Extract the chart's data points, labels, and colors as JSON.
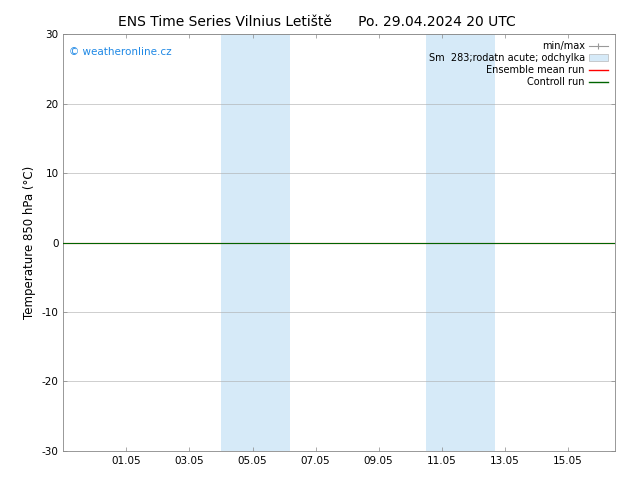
{
  "title_left": "ENS Time Series Vilnius Letiště",
  "title_right": "Po. 29.04.2024 20 UTC",
  "ylabel": "Temperature 850 hPa (°C)",
  "ylim": [
    -30,
    30
  ],
  "yticks": [
    -30,
    -20,
    -10,
    0,
    10,
    20,
    30
  ],
  "xtick_labels": [
    "01.05",
    "03.05",
    "05.05",
    "07.05",
    "09.05",
    "11.05",
    "13.05",
    "15.05"
  ],
  "xtick_positions": [
    2,
    4,
    6,
    8,
    10,
    12,
    14,
    16
  ],
  "x_min": 0,
  "x_max": 17.5,
  "shaded_bands": [
    {
      "x_start": 5.0,
      "x_end": 7.2
    },
    {
      "x_start": 11.5,
      "x_end": 13.7
    }
  ],
  "shaded_color": "#d6eaf8",
  "control_run_y": 0.0,
  "ensemble_mean_y": 0.0,
  "watermark_text": "© weatheronline.cz",
  "watermark_color": "#1e88e5",
  "background_color": "#ffffff",
  "grid_color": "#aaaaaa",
  "spine_color": "#888888",
  "title_fontsize": 10,
  "tick_fontsize": 7.5,
  "ylabel_fontsize": 8.5,
  "legend_fontsize": 7,
  "watermark_fontsize": 7.5
}
